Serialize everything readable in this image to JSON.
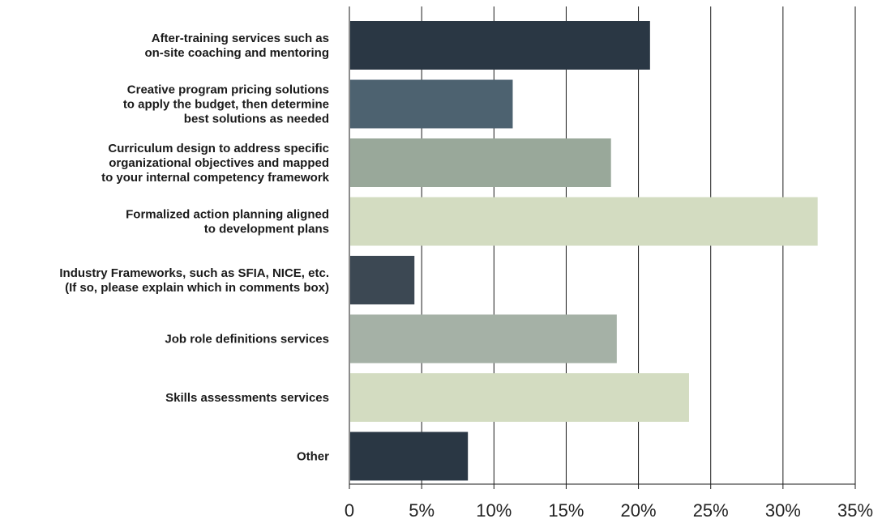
{
  "chart_data": {
    "type": "bar",
    "orientation": "horizontal",
    "title": "",
    "xlabel": "",
    "ylabel": "",
    "xlim": [
      0,
      35
    ],
    "grid": true,
    "legend": "none",
    "x_ticks": [
      "0",
      "5%",
      "10%",
      "15%",
      "20%",
      "25%",
      "30%",
      "35%"
    ],
    "x_tick_values": [
      0,
      5,
      10,
      15,
      20,
      25,
      30,
      35
    ],
    "categories": [
      [
        "After-training services such as",
        "on-site coaching and mentoring"
      ],
      [
        "Creative program pricing solutions",
        "to apply the budget, then determine",
        "best solutions as needed"
      ],
      [
        "Curriculum design to address specific",
        "organizational objectives and mapped",
        "to your internal competency framework"
      ],
      [
        "Formalized action planning aligned",
        "to development plans"
      ],
      [
        "Industry Frameworks, such as SFIA, NICE, etc.",
        "(If so, please explain which in comments box)"
      ],
      [
        "Job role definitions services"
      ],
      [
        "Skills assessments services"
      ],
      [
        "Other"
      ]
    ],
    "values": [
      20.8,
      11.3,
      18.1,
      32.4,
      4.5,
      18.5,
      23.5,
      8.2
    ],
    "colors": [
      "#2a3744",
      "#4d6270",
      "#99a89a",
      "#d3dcc1",
      "#3c4853",
      "#a5b1a6",
      "#d3dcc1",
      "#2a3744"
    ]
  }
}
